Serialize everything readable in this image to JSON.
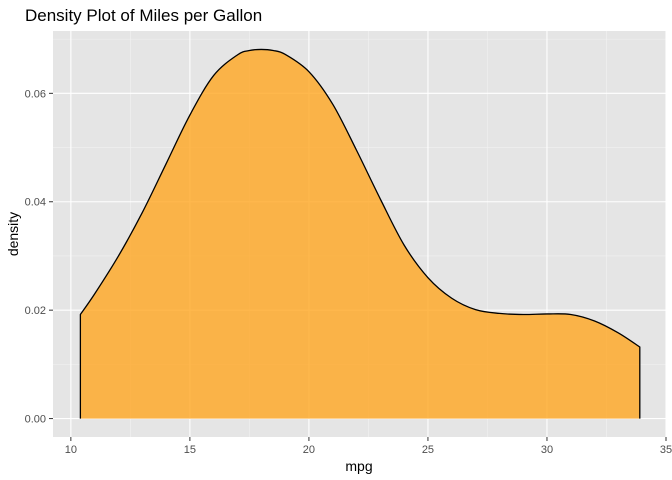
{
  "chart_data": {
    "type": "area",
    "title": "Density Plot of Miles per Gallon",
    "xlabel": "mpg",
    "ylabel": "density",
    "xlim": [
      9.25,
      35.0
    ],
    "ylim": [
      -0.0034,
      0.0715
    ],
    "x_ticks": [
      10,
      15,
      20,
      25,
      30,
      35
    ],
    "y_ticks": [
      0.0,
      0.02,
      0.04,
      0.06
    ],
    "x_tick_labels": [
      "10",
      "15",
      "20",
      "25",
      "30",
      "35"
    ],
    "y_tick_labels": [
      "0.00",
      "0.02",
      "0.04",
      "0.06"
    ],
    "grid": true,
    "panel_background": "#e5e5e5",
    "fill_color": "#ffa621",
    "fill_opacity": 0.8,
    "line_color": "#000000",
    "series": [
      {
        "x": [
          10.4,
          11.0,
          12.0,
          13.0,
          14.0,
          15.0,
          16.0,
          17.0,
          17.5,
          18.0,
          18.5,
          19.0,
          20.0,
          21.0,
          22.0,
          23.0,
          24.0,
          25.0,
          26.0,
          27.0,
          28.0,
          29.0,
          30.0,
          31.0,
          32.0,
          33.0,
          33.9
        ],
        "y": [
          0.0192,
          0.023,
          0.03,
          0.038,
          0.047,
          0.056,
          0.0633,
          0.0671,
          0.0679,
          0.0681,
          0.0679,
          0.0672,
          0.064,
          0.058,
          0.0495,
          0.0405,
          0.032,
          0.026,
          0.0222,
          0.0201,
          0.0194,
          0.0192,
          0.0193,
          0.0192,
          0.018,
          0.0158,
          0.0132
        ]
      }
    ]
  }
}
